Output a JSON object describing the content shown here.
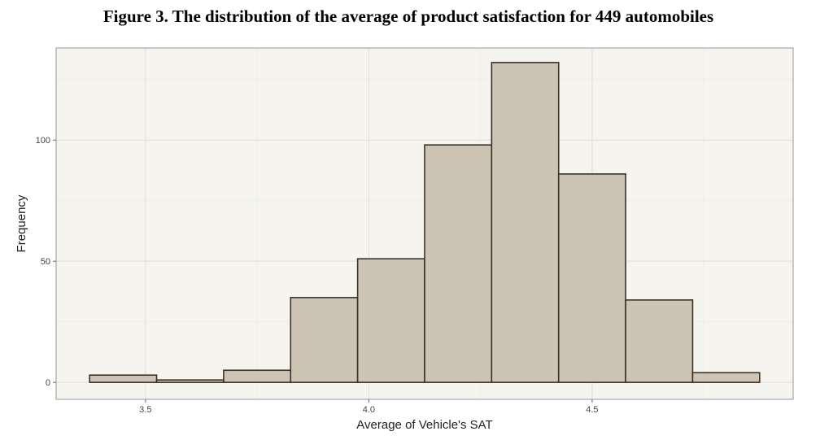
{
  "chart_data": {
    "type": "bar",
    "title": "Figure 3. The distribution of the average of product satisfaction for 449 automobiles",
    "xlabel": "Average of Vehicle's SAT",
    "ylabel": "Frequency",
    "xlim": [
      3.3,
      4.95
    ],
    "ylim": [
      -7,
      138
    ],
    "x_ticks": [
      3.5,
      4.0,
      4.5
    ],
    "x_tick_labels": [
      "3.5",
      "4.0",
      "4.5"
    ],
    "y_ticks": [
      0,
      50,
      100
    ],
    "y_tick_labels": [
      "0",
      "50",
      "100"
    ],
    "x_minor_gridlines": [
      3.75,
      4.25,
      4.75
    ],
    "y_minor_gridlines": [
      25,
      75,
      125
    ],
    "grid": true,
    "bins": [
      {
        "x0": 3.375,
        "x1": 3.525,
        "count": 3
      },
      {
        "x0": 3.525,
        "x1": 3.675,
        "count": 1
      },
      {
        "x0": 3.675,
        "x1": 3.825,
        "count": 5
      },
      {
        "x0": 3.825,
        "x1": 3.975,
        "count": 35
      },
      {
        "x0": 3.975,
        "x1": 4.125,
        "count": 51
      },
      {
        "x0": 4.125,
        "x1": 4.275,
        "count": 98
      },
      {
        "x0": 4.275,
        "x1": 4.425,
        "count": 132
      },
      {
        "x0": 4.425,
        "x1": 4.575,
        "count": 86
      },
      {
        "x0": 4.575,
        "x1": 4.725,
        "count": 34
      },
      {
        "x0": 4.725,
        "x1": 4.875,
        "count": 4
      }
    ],
    "colors": {
      "panel_background": "#f5f4ef",
      "panel_border": "#a8a8a8",
      "grid_major": "#dedddb",
      "grid_minor": "#eae9e4",
      "bar_fill": "#cdc4b6",
      "bar_stroke": "#3a3226"
    }
  }
}
